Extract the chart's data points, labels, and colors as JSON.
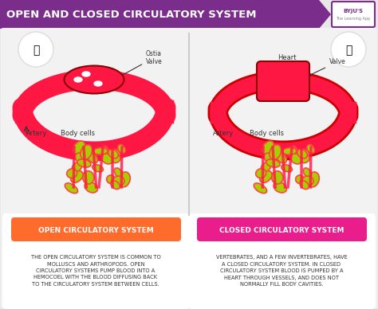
{
  "title": "OPEN AND CLOSED CIRCULATORY SYSTEM",
  "title_bg": "#7B2D8B",
  "title_color": "#FFFFFF",
  "bg_color": "#E8E8E8",
  "panel_bg": "#F0F0F0",
  "open_label": "OPEN CIRCULATORY SYSTEM",
  "open_label_color": "#FF6B2B",
  "closed_label": "CLOSED CIRCULATORY SYSTEM",
  "closed_label_color": "#E91E8C",
  "open_text": "THE OPEN CIRCULATORY SYSTEM IS COMMON TO\nMOLLUSCS AND ARTHROPODS. OPEN\nCIRCULATORY SYSTEMS PUMP BLOOD INTO A\nHEMOCOEL WITH THE BLOOD DIFFUSING BACK\nTO THE CIRCULATORY SYSTEM BETWEEN CELLS.",
  "closed_text": "VERTEBRATES, AND A FEW INVERTEBRATES, HAVE\nA CLOSED CIRCULATORY SYSTEM. IN CLOSED\nCIRCULATORY SYSTEM BLOOD IS PUMPED BY A\nHEART THROUGH VESSELS, AND DOES NOT\nNORMALLY FILL BODY CAVITIES.",
  "blood_color": "#FF1744",
  "heart_color": "#FF1744",
  "cell_color_main": "#AACC00",
  "cell_color_dark": "#FF4444",
  "byju_color": "#7B2D8B",
  "divider_color": "#CCCCCC"
}
